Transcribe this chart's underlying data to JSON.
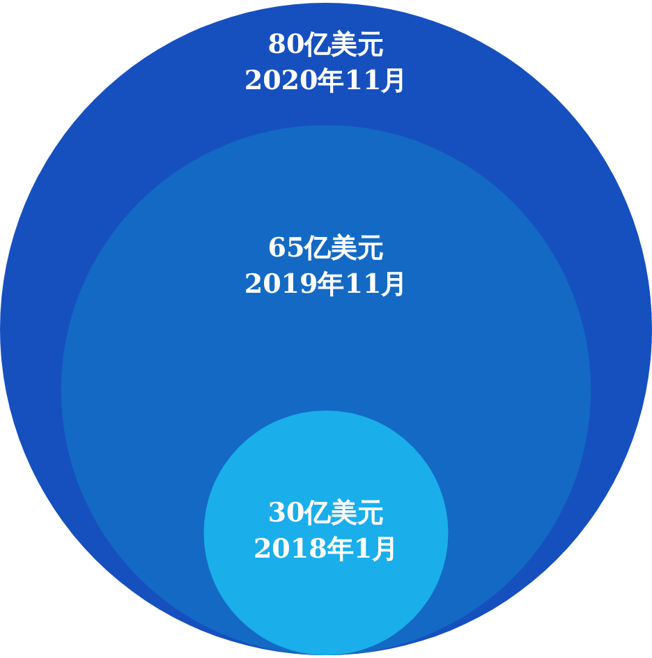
{
  "chart_data": {
    "type": "other",
    "categories": [
      "2018年1月",
      "2019年11月",
      "2020年11月"
    ],
    "values": [
      30,
      65,
      80
    ],
    "value_labels": [
      "30亿美元",
      "65亿美元",
      "80亿美元"
    ],
    "colors": [
      "#1aaeeb",
      "#1469c4",
      "#1650bf"
    ]
  }
}
